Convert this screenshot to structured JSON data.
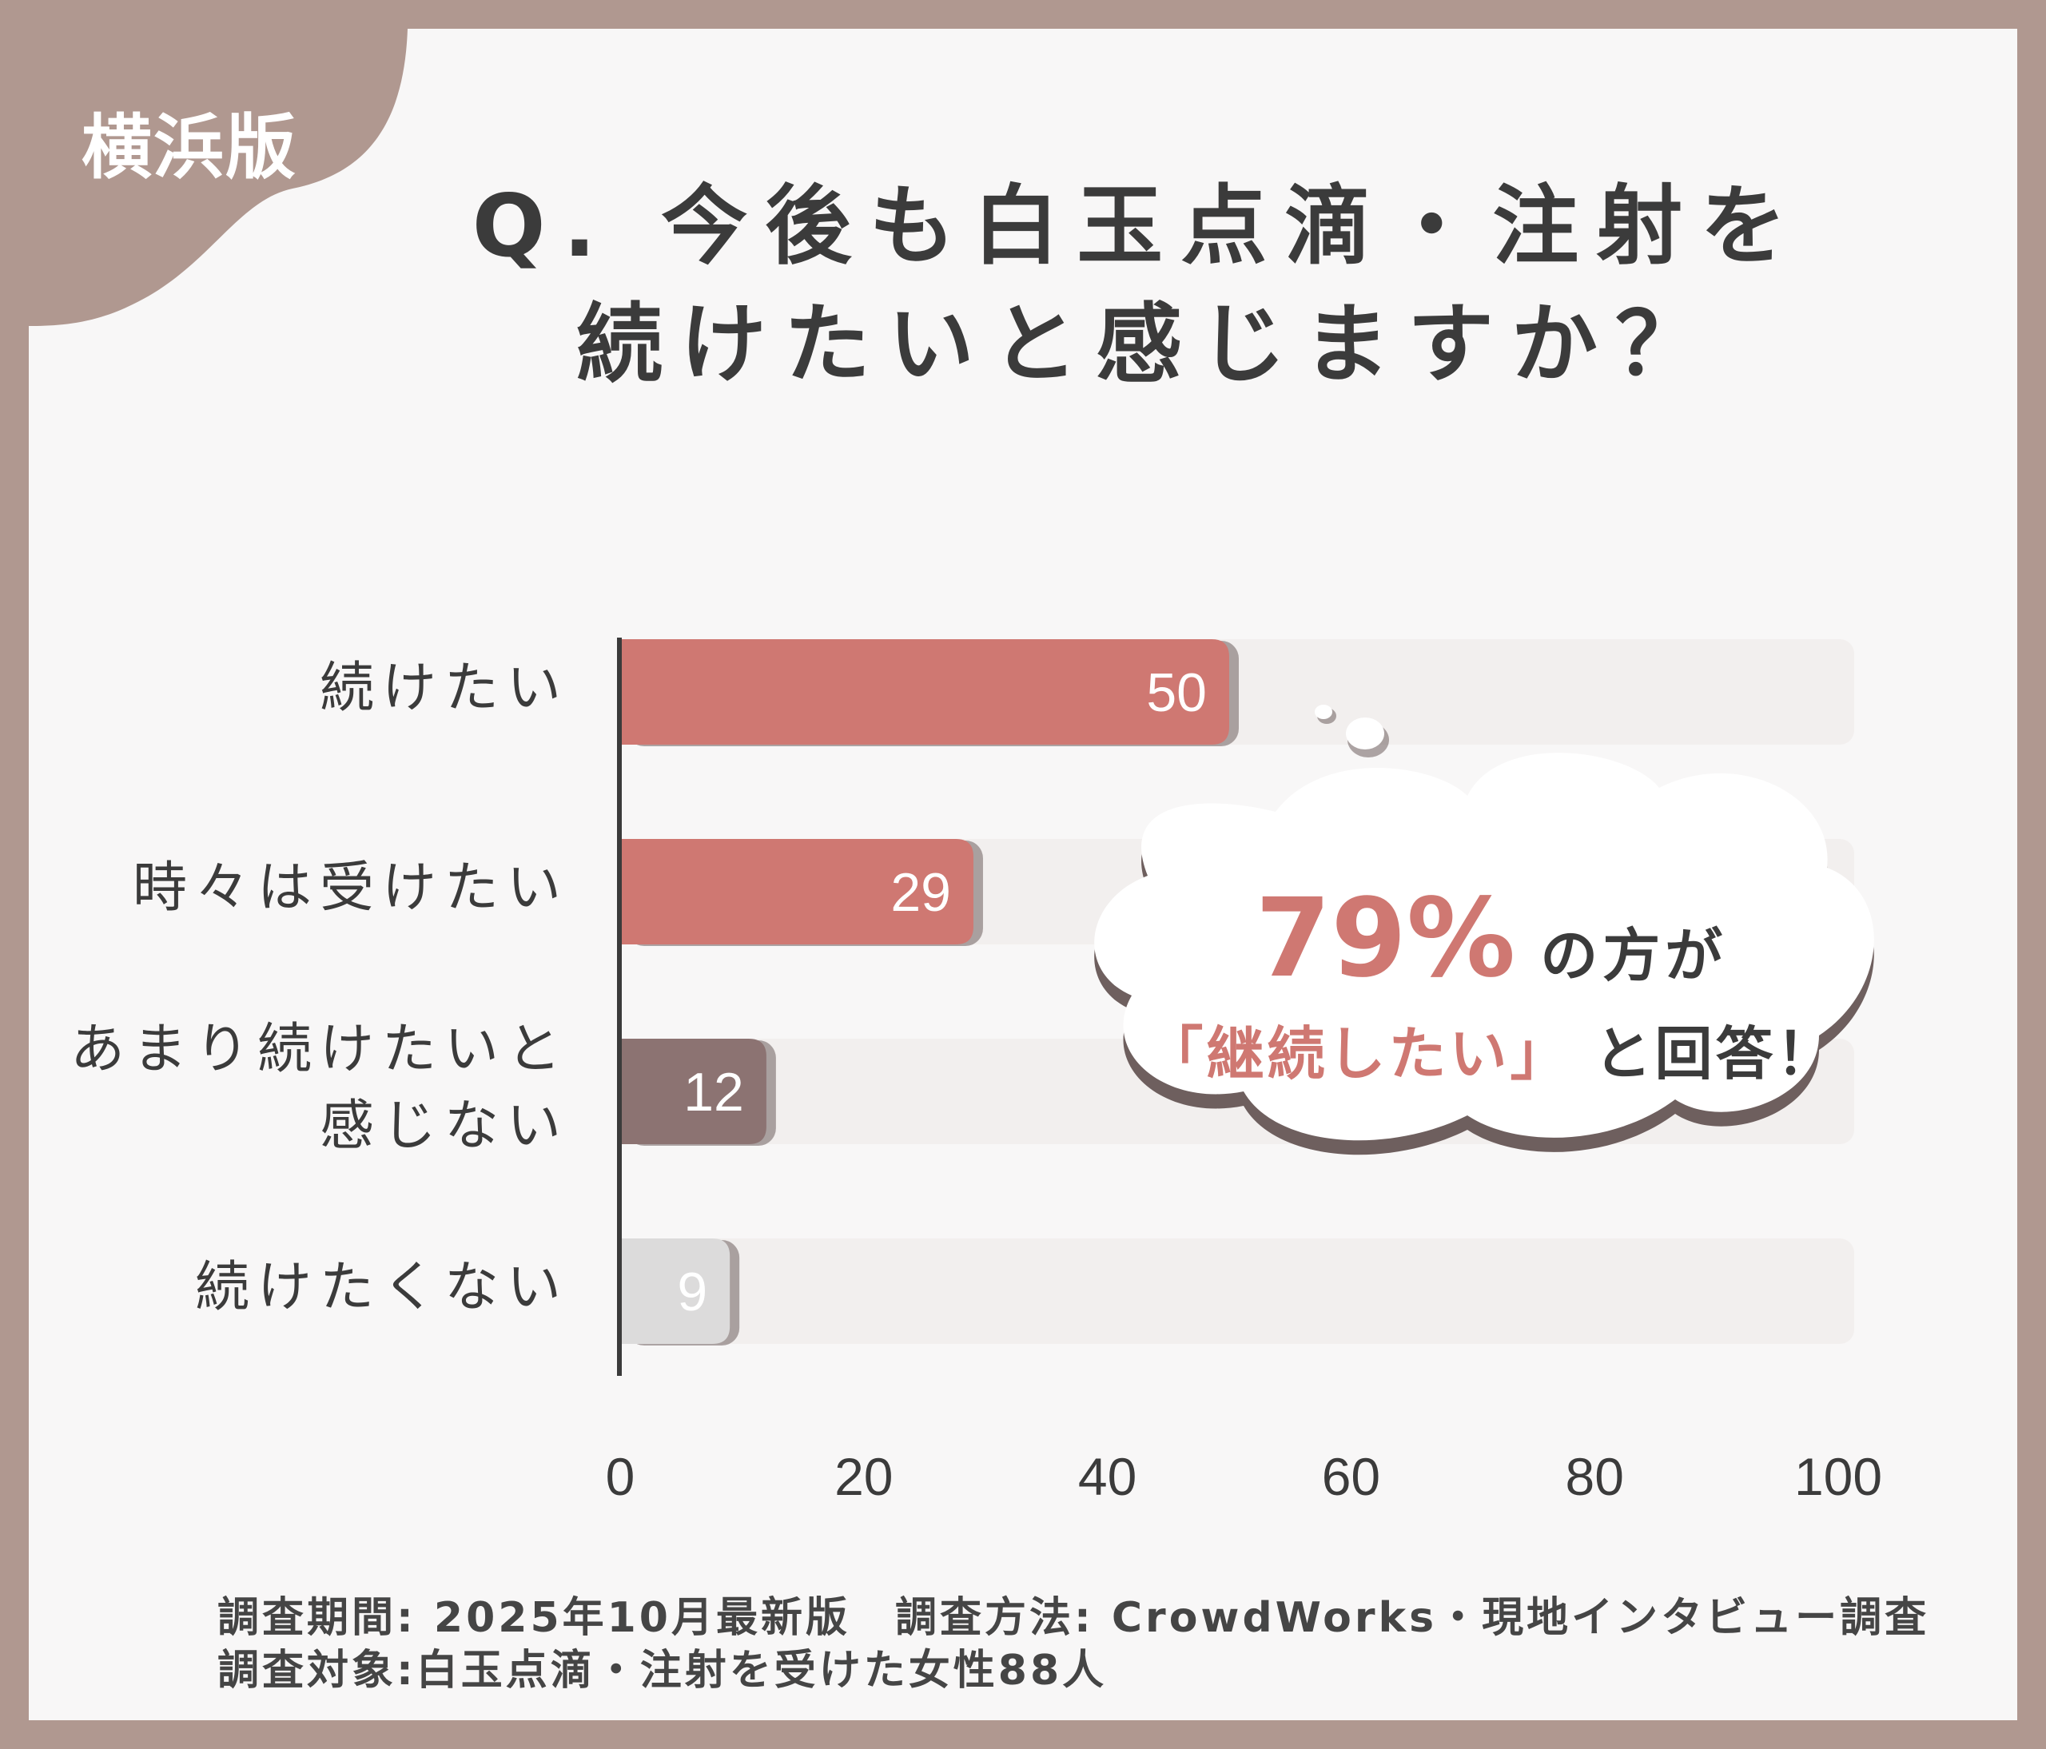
{
  "badge": {
    "region": "横浜版"
  },
  "title": {
    "line1": "Q. 今後も白玉点滴・注射を",
    "line2": "続けたいと感じますか？"
  },
  "callout": {
    "percent": "79%",
    "after_percent": "の方が",
    "open_bracket": "「",
    "highlight": "継続したい",
    "close_bracket": "」",
    "ending": "と回答！"
  },
  "footer": {
    "line1": "調査期間: 2025年10月最新版　調査方法: CrowdWorks・現地インタビュー調査",
    "line2": "調査対象:白玉点滴・注射を受けた女性88人"
  },
  "colors": {
    "frame": "#b09890",
    "bar_primary": "#cf7872",
    "bar_secondary": "#8c7372",
    "bar_light": "#dcdbdb",
    "track": "#f2efee",
    "text": "#3b3b3b"
  },
  "chart_data": {
    "type": "bar",
    "orientation": "horizontal",
    "categories": [
      "続けたい",
      "時々は受けたい",
      "あまり続けたいと感じない",
      "続けたくない"
    ],
    "category_lines": [
      [
        "続けたい"
      ],
      [
        "時々は受けたい"
      ],
      [
        "あまり続けたいと",
        "感じない"
      ],
      [
        "続けたくない"
      ]
    ],
    "values": [
      50,
      29,
      12,
      9
    ],
    "data_labels": [
      "50",
      "29",
      "12",
      "9"
    ],
    "bar_colors": [
      "#cf7872",
      "#cf7872",
      "#8c7372",
      "#dcdbdb"
    ],
    "xlim": [
      0,
      100
    ],
    "xticks": [
      0,
      20,
      40,
      60,
      80,
      100
    ],
    "tick_labels": [
      "0",
      "20",
      "40",
      "60",
      "80",
      "100"
    ],
    "grid": false,
    "legend": "none"
  }
}
